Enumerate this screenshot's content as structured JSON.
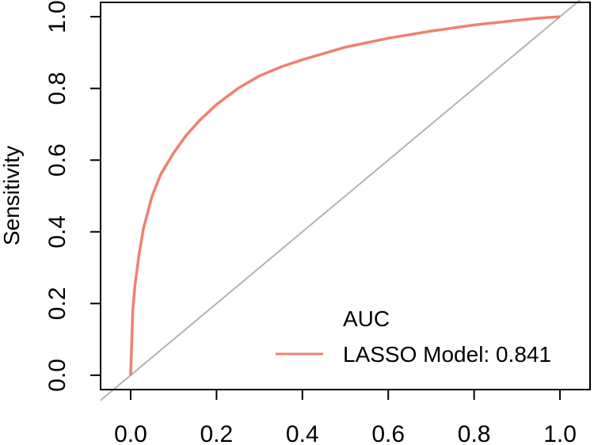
{
  "chart_data": {
    "type": "line",
    "title": "",
    "xlabel": "",
    "ylabel": "Sensitivity",
    "xlim": [
      -0.07,
      1.07
    ],
    "ylim": [
      -0.04,
      1.04
    ],
    "x_ticks": [
      "0.0",
      "0.2",
      "0.4",
      "0.6",
      "0.8",
      "1.0"
    ],
    "y_ticks": [
      "0.0",
      "0.2",
      "0.4",
      "0.6",
      "0.8",
      "1.0"
    ],
    "grid": false,
    "reference_line": {
      "from": [
        -0.07,
        -0.07
      ],
      "to": [
        1.07,
        1.07
      ],
      "color": "#b3b3b3"
    },
    "series": [
      {
        "name": "LASSO Model: 0.841",
        "color": "#f08070",
        "x": [
          0.0,
          0.005,
          0.01,
          0.02,
          0.03,
          0.05,
          0.07,
          0.1,
          0.13,
          0.16,
          0.2,
          0.25,
          0.3,
          0.35,
          0.4,
          0.5,
          0.6,
          0.7,
          0.8,
          0.9,
          0.95,
          1.0
        ],
        "y": [
          0.0,
          0.18,
          0.25,
          0.34,
          0.41,
          0.5,
          0.56,
          0.62,
          0.67,
          0.71,
          0.755,
          0.8,
          0.835,
          0.86,
          0.88,
          0.915,
          0.94,
          0.96,
          0.977,
          0.99,
          0.996,
          1.0
        ]
      }
    ],
    "legend": {
      "title": "AUC",
      "placement": "bottom-right"
    }
  }
}
